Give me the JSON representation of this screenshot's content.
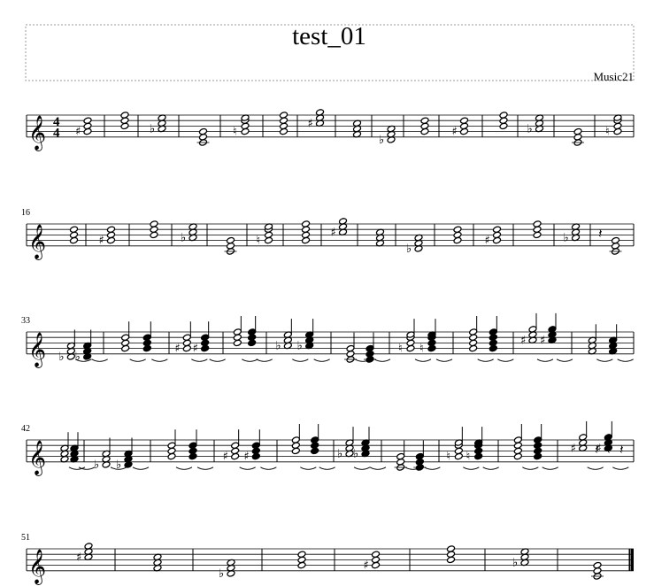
{
  "header": {
    "title": "test_01",
    "composer": "Music21"
  },
  "score": {
    "time_signature": {
      "numerator": "4",
      "denominator": "4"
    },
    "clef": "treble-clef",
    "systems": [
      {
        "first_measure_number": "",
        "measures": 15
      },
      {
        "first_measure_number": "16",
        "measures": 17
      },
      {
        "first_measure_number": "33",
        "measures": 9
      },
      {
        "first_measure_number": "42",
        "measures": 9
      },
      {
        "first_measure_number": "51",
        "measures": 8
      }
    ]
  },
  "glyphs": {
    "clef": "𝄞",
    "sharp": "♯",
    "flat": "♭",
    "natural": "♮",
    "rest": "𝄽"
  }
}
